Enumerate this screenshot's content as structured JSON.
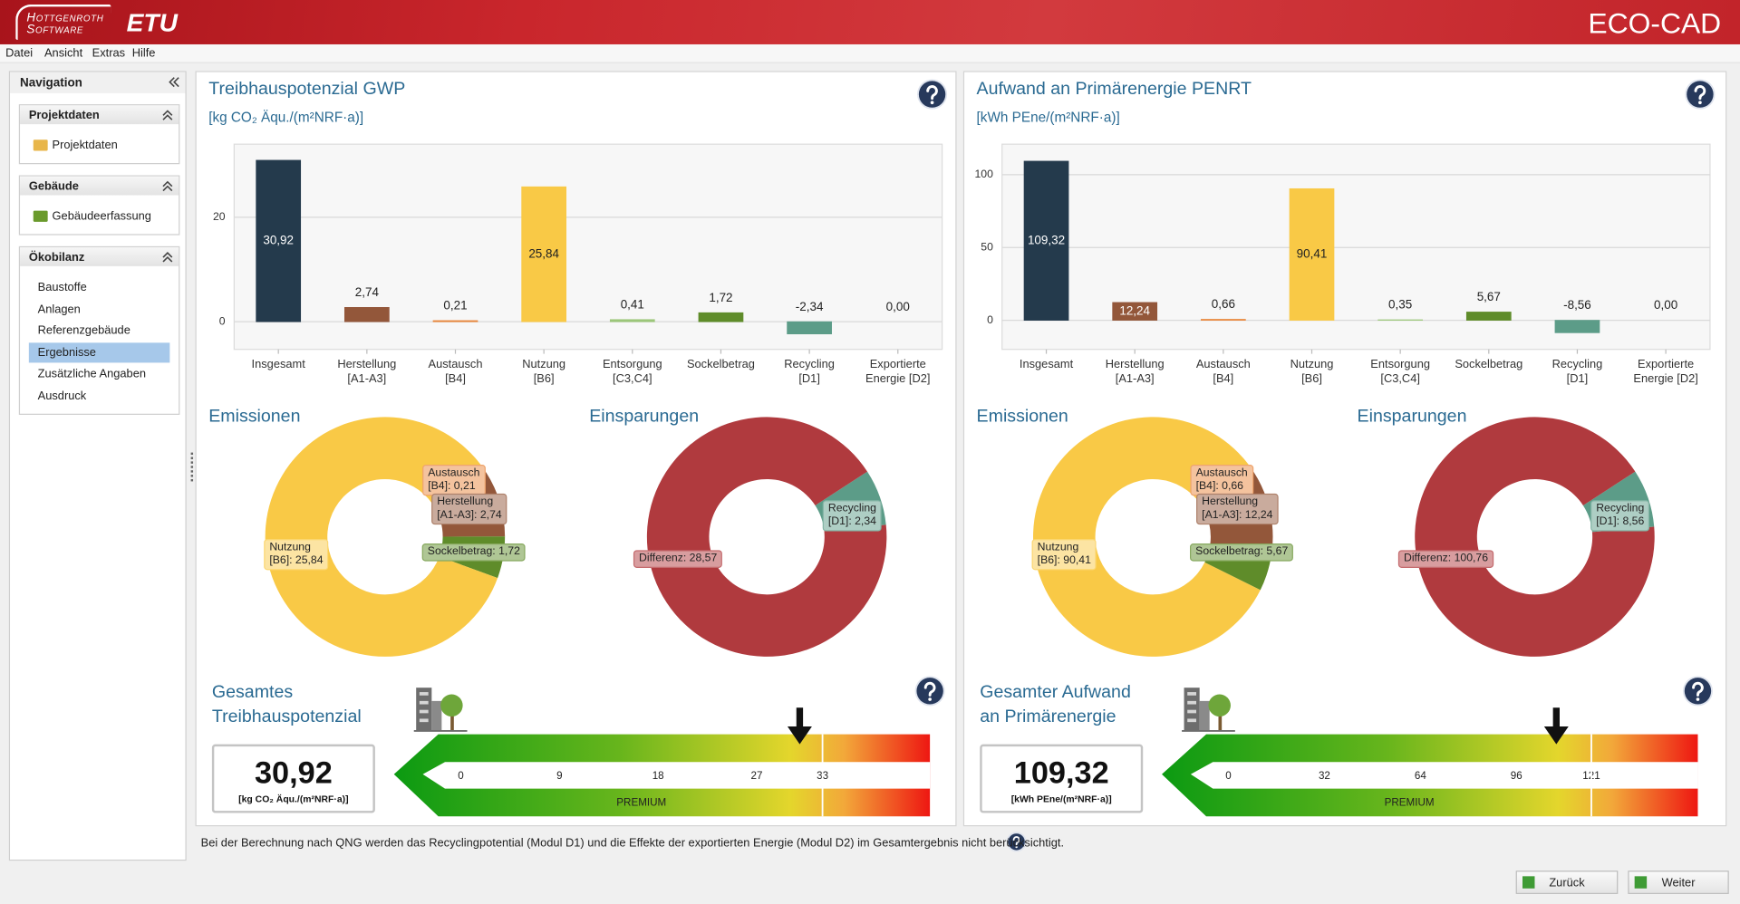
{
  "header": {
    "logo": [
      "Hottgenroth",
      "Software"
    ],
    "brand": "ETU",
    "app": "ECO-CAD"
  },
  "menu": [
    "Datei",
    "Ansicht",
    "Extras",
    "Hilfe"
  ],
  "navigation": {
    "title": "Navigation",
    "sections": [
      {
        "title": "Projektdaten",
        "items": [
          "Projektdaten"
        ]
      },
      {
        "title": "Gebäude",
        "items": [
          "Gebäudeerfassung"
        ]
      },
      {
        "title": "Ökobilanz",
        "items": [
          "Baustoffe",
          "Anlagen",
          "Referenzgebäude",
          "Ergebnisse",
          "Zusätzliche Angaben",
          "Ausdruck"
        ],
        "selected": 3
      }
    ]
  },
  "panels": [
    {
      "title": "Treibhauspotenzial GWP",
      "unit": "[kg CO₂ Äqu./(m²NRF·a)]",
      "bar_chart": {
        "type": "bar",
        "categories": [
          [
            "Insgesamt"
          ],
          [
            "Herstellung",
            "[A1-A3]"
          ],
          [
            "Austausch",
            "[B4]"
          ],
          [
            "Nutzung",
            "[B6]"
          ],
          [
            "Entsorgung",
            "[C3,C4]"
          ],
          [
            "Sockelbetrag"
          ],
          [
            "Recycling",
            "[D1]"
          ],
          [
            "Exportierte",
            "Energie [D2]"
          ]
        ],
        "values": [
          30.92,
          2.74,
          0.21,
          25.84,
          0.41,
          1.72,
          -2.34,
          0.0
        ],
        "value_labels": [
          "30,92",
          "2,74",
          "0,21",
          "25,84",
          "0,41",
          "1,72",
          "-2,34",
          "0,00"
        ],
        "colors": [
          "#243a4c",
          "#93573a",
          "#e8863c",
          "#f9c946",
          "#9cc77a",
          "#5f8c2a",
          "#5c9c88",
          "#8fb5a8"
        ],
        "ylim": [
          -5.3,
          34
        ],
        "yticks": [
          0,
          20
        ],
        "grid": true
      },
      "emissions": {
        "type": "donut",
        "title": "Emissionen",
        "labels": [
          [
            "Austausch",
            "[B4]: 0,21"
          ],
          [
            "Herstellung",
            "[A1-A3]: 2,74"
          ],
          [
            "Sockelbetrag: 1,72"
          ],
          [
            "Nutzung",
            "[B6]: 25,84"
          ]
        ],
        "values": [
          0.21,
          2.74,
          1.72,
          25.84
        ],
        "colors": [
          "#e8863c",
          "#93573a",
          "#5f8c2a",
          "#f9c946"
        ]
      },
      "savings": {
        "type": "donut",
        "title": "Einsparungen",
        "labels": [
          [
            "Recycling",
            "[D1]: 2,34"
          ],
          [
            "Differenz: 28,57"
          ]
        ],
        "values": [
          2.34,
          28.57
        ],
        "colors": [
          "#5c9c88",
          "#b03a3e"
        ]
      },
      "scale": {
        "title": [
          "Gesamtes",
          "Treibhauspotenzial"
        ],
        "value": 30.92,
        "value_label": "30,92",
        "ticks": [
          0,
          9,
          18,
          27,
          33
        ],
        "xlim": [
          -6.1,
          42.8
        ],
        "band_label": "PREMIUM"
      }
    },
    {
      "title": "Aufwand an Primärenergie PENRT",
      "unit": "[kWh PEne/(m²NRF·a)]",
      "bar_chart": {
        "type": "bar",
        "categories": [
          [
            "Insgesamt"
          ],
          [
            "Herstellung",
            "[A1-A3]"
          ],
          [
            "Austausch",
            "[B4]"
          ],
          [
            "Nutzung",
            "[B6]"
          ],
          [
            "Entsorgung",
            "[C3,C4]"
          ],
          [
            "Sockelbetrag"
          ],
          [
            "Recycling",
            "[D1]"
          ],
          [
            "Exportierte",
            "Energie [D2]"
          ]
        ],
        "values": [
          109.32,
          12.24,
          0.66,
          90.41,
          0.35,
          5.67,
          -8.56,
          0.0
        ],
        "value_labels": [
          "109,32",
          "12,24",
          "0,66",
          "90,41",
          "0,35",
          "5,67",
          "-8,56",
          "0,00"
        ],
        "colors": [
          "#243a4c",
          "#93573a",
          "#e8863c",
          "#f9c946",
          "#9cc77a",
          "#5f8c2a",
          "#5c9c88",
          "#8fb5a8"
        ],
        "ylim": [
          -20,
          121
        ],
        "yticks": [
          0,
          50,
          100
        ],
        "grid": true
      },
      "emissions": {
        "type": "donut",
        "title": "Emissionen",
        "labels": [
          [
            "Austausch",
            "[B4]: 0,66"
          ],
          [
            "Herstellung",
            "[A1-A3]: 12,24"
          ],
          [
            "Sockelbetrag: 5,67"
          ],
          [
            "Nutzung",
            "[B6]: 90,41"
          ]
        ],
        "values": [
          0.66,
          12.24,
          5.67,
          90.41
        ],
        "colors": [
          "#e8863c",
          "#93573a",
          "#5f8c2a",
          "#f9c946"
        ]
      },
      "savings": {
        "type": "donut",
        "title": "Einsparungen",
        "labels": [
          [
            "Recycling",
            "[D1]: 8,56"
          ],
          [
            "Differenz: 100,76"
          ]
        ],
        "values": [
          8.56,
          100.76
        ],
        "colors": [
          "#5c9c88",
          "#b03a3e"
        ]
      },
      "scale": {
        "title": [
          "Gesamter Aufwand",
          "an Primärenergie"
        ],
        "value": 109.32,
        "value_label": "109,32",
        "ticks": [
          0,
          32,
          64,
          96,
          121
        ],
        "xlim": [
          -22.2,
          156.5
        ],
        "band_label": "PREMIUM"
      }
    }
  ],
  "footnote": "Bei der Berechnung nach QNG werden das Recyclingpotential (Modul D1) und die Effekte der exportierten Energie (Modul D2) im Gesamtergebnis nicht berücksichtigt.",
  "buttons": [
    "Zurück",
    "Weiter"
  ]
}
